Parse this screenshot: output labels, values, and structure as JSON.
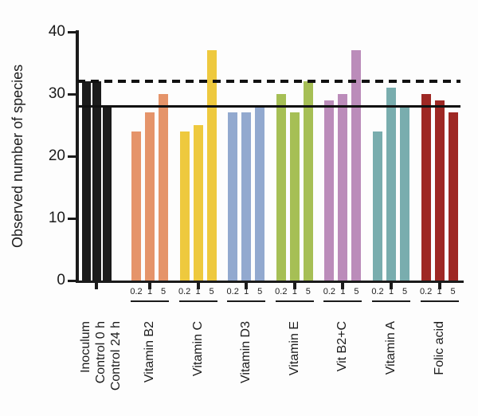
{
  "chart_data": {
    "type": "bar",
    "title": "",
    "ylabel": "Observed number of species",
    "ylim": [
      0,
      40
    ],
    "yticks": [
      "0",
      "10",
      "20",
      "30",
      "40"
    ],
    "grid": false,
    "legend": false,
    "reference_lines": [
      {
        "style": "dashed",
        "value": 32,
        "color": "#111111"
      },
      {
        "style": "solid",
        "value": 28,
        "color": "#111111"
      }
    ],
    "control_group": {
      "color": "#1b1b1b",
      "bars": [
        {
          "label": "Inoculum",
          "value": 32
        },
        {
          "label": "Control 0 h",
          "value": 32
        },
        {
          "label": "Control 24 h",
          "value": 28
        }
      ]
    },
    "dose_labels": [
      "0.2",
      "1",
      "5"
    ],
    "groups": [
      {
        "name": "Vitamin B2",
        "color": "#e5946a",
        "values": [
          24,
          27,
          30
        ]
      },
      {
        "name": "Vitamin C",
        "color": "#eec93e",
        "values": [
          24,
          25,
          37
        ]
      },
      {
        "name": "Vitamin D3",
        "color": "#92a9cf",
        "values": [
          27,
          27,
          28
        ]
      },
      {
        "name": "Vitamin E",
        "color": "#a6bf55",
        "values": [
          30,
          27,
          32
        ]
      },
      {
        "name": "Vit B2+C",
        "color": "#bb8cba",
        "values": [
          29,
          30,
          37
        ]
      },
      {
        "name": "Vitamin A",
        "color": "#79adae",
        "values": [
          24,
          31,
          28
        ]
      },
      {
        "name": "Folic acid",
        "color": "#9e2824",
        "values": [
          30,
          29,
          27
        ]
      }
    ]
  }
}
